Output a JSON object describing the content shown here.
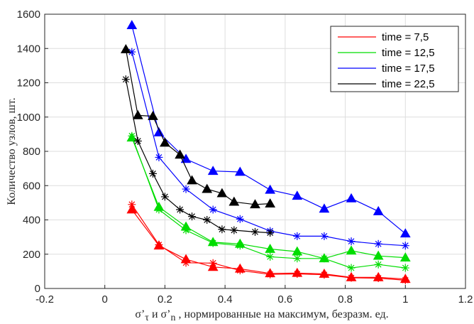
{
  "chart_data": {
    "type": "line",
    "xlabel": "σ’τ и σ’n , нормированные на максимум, безразм. ед.",
    "ylabel": "Количество узлов, шт.",
    "xlim": [
      -0.2,
      1.2
    ],
    "ylim": [
      0,
      1600
    ],
    "xticks": [
      "-0.2",
      "0",
      "0.2",
      "0.4",
      "0.6",
      "0.8",
      "1",
      "1.2"
    ],
    "yticks": [
      "0",
      "200",
      "400",
      "600",
      "800",
      "1000",
      "1200",
      "1400",
      "1600"
    ],
    "grid": true,
    "legend_position": "top-right",
    "marker_meaning_note": "",
    "series": [
      {
        "name": "time = 7,5",
        "color": "#ff0000",
        "triangle": {
          "x": [
            0.09,
            0.18,
            0.27,
            0.36,
            0.45,
            0.55,
            0.64,
            0.73,
            0.82,
            0.91,
            1.0
          ],
          "y": [
            460,
            250,
            170,
            125,
            115,
            88,
            90,
            85,
            65,
            65,
            55
          ]
        },
        "star": {
          "x": [
            0.09,
            0.18,
            0.27,
            0.36,
            0.45,
            0.55,
            0.64,
            0.73,
            0.82,
            0.91,
            1.0
          ],
          "y": [
            490,
            255,
            150,
            148,
            105,
            82,
            85,
            80,
            62,
            60,
            48
          ]
        }
      },
      {
        "name": "time = 12,5",
        "color": "#00dd00",
        "triangle": {
          "x": [
            0.09,
            0.18,
            0.27,
            0.36,
            0.45,
            0.55,
            0.64,
            0.73,
            0.82,
            0.91,
            1.0
          ],
          "y": [
            880,
            475,
            360,
            270,
            260,
            230,
            215,
            175,
            220,
            190,
            180
          ]
        },
        "star": {
          "x": [
            0.09,
            0.18,
            0.27,
            0.36,
            0.45,
            0.55,
            0.64,
            0.73,
            0.82,
            0.91,
            1.0
          ],
          "y": [
            890,
            460,
            340,
            265,
            250,
            185,
            175,
            175,
            120,
            140,
            120
          ]
        }
      },
      {
        "name": "time = 17,5",
        "color": "#0000ff",
        "triangle": {
          "x": [
            0.09,
            0.18,
            0.27,
            0.36,
            0.45,
            0.55,
            0.64,
            0.73,
            0.82,
            0.91,
            1.0
          ],
          "y": [
            1535,
            910,
            755,
            685,
            680,
            575,
            540,
            465,
            525,
            450,
            320
          ]
        },
        "star": {
          "x": [
            0.09,
            0.18,
            0.27,
            0.36,
            0.45,
            0.55,
            0.64,
            0.73,
            0.82,
            0.91,
            1.0
          ],
          "y": [
            1380,
            765,
            580,
            460,
            405,
            335,
            305,
            305,
            275,
            260,
            250
          ]
        }
      },
      {
        "name": "time = 22,5",
        "color": "#000000",
        "triangle": {
          "x": [
            0.07,
            0.11,
            0.16,
            0.2,
            0.25,
            0.29,
            0.34,
            0.39,
            0.43,
            0.5,
            0.55
          ],
          "y": [
            1395,
            1010,
            1005,
            850,
            780,
            630,
            580,
            555,
            505,
            490,
            495
          ]
        },
        "star": {
          "x": [
            0.07,
            0.11,
            0.16,
            0.2,
            0.25,
            0.29,
            0.34,
            0.39,
            0.43,
            0.5,
            0.55
          ],
          "y": [
            1220,
            860,
            670,
            535,
            460,
            420,
            400,
            345,
            340,
            330,
            325
          ]
        }
      }
    ]
  }
}
